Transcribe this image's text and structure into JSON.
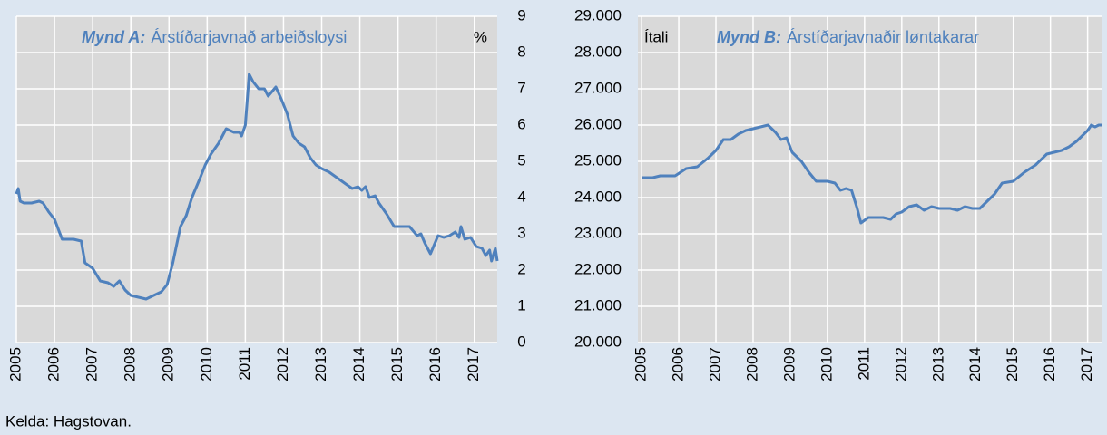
{
  "source": "Kelda: Hagstovan.",
  "chart_data": [
    {
      "type": "line",
      "title_label": "Mynd A:",
      "title": "Árstíðarjavnað arbeiðsloysi",
      "unit": "%",
      "color": "#4f81bd",
      "grid": true,
      "xlim": [
        2005,
        2017.6
      ],
      "xticks": [
        2005,
        2006,
        2007,
        2008,
        2009,
        2010,
        2011,
        2012,
        2013,
        2014,
        2015,
        2016,
        2017
      ],
      "ylim": [
        0,
        9
      ],
      "yticks": [
        0,
        1,
        2,
        3,
        4,
        5,
        6,
        7,
        8,
        9
      ],
      "x": [
        2005.0,
        2005.05,
        2005.1,
        2005.2,
        2005.4,
        2005.6,
        2005.7,
        2005.85,
        2006.0,
        2006.2,
        2006.5,
        2006.7,
        2006.8,
        2007.0,
        2007.2,
        2007.4,
        2007.55,
        2007.7,
        2007.85,
        2008.0,
        2008.2,
        2008.4,
        2008.6,
        2008.8,
        2008.95,
        2009.1,
        2009.3,
        2009.45,
        2009.6,
        2009.8,
        2009.95,
        2010.1,
        2010.3,
        2010.5,
        2010.7,
        2010.85,
        2010.9,
        2011.0,
        2011.1,
        2011.2,
        2011.35,
        2011.5,
        2011.6,
        2011.8,
        2011.95,
        2012.1,
        2012.25,
        2012.4,
        2012.55,
        2012.7,
        2012.85,
        2013.0,
        2013.2,
        2013.4,
        2013.6,
        2013.8,
        2013.95,
        2014.05,
        2014.15,
        2014.25,
        2014.4,
        2014.5,
        2014.7,
        2014.9,
        2015.1,
        2015.3,
        2015.5,
        2015.6,
        2015.7,
        2015.85,
        2015.95,
        2016.05,
        2016.2,
        2016.35,
        2016.5,
        2016.6,
        2016.65,
        2016.75,
        2016.9,
        2017.05,
        2017.2,
        2017.3,
        2017.4,
        2017.45,
        2017.55,
        2017.6
      ],
      "values": [
        4.1,
        4.25,
        3.9,
        3.85,
        3.85,
        3.9,
        3.85,
        3.6,
        3.4,
        2.85,
        2.85,
        2.8,
        2.2,
        2.05,
        1.7,
        1.65,
        1.55,
        1.7,
        1.45,
        1.3,
        1.25,
        1.2,
        1.3,
        1.4,
        1.6,
        2.2,
        3.2,
        3.5,
        4.0,
        4.5,
        4.9,
        5.2,
        5.5,
        5.9,
        5.8,
        5.8,
        5.7,
        6.0,
        7.4,
        7.2,
        7.0,
        7.0,
        6.8,
        7.05,
        6.7,
        6.3,
        5.7,
        5.5,
        5.4,
        5.1,
        4.9,
        4.8,
        4.7,
        4.55,
        4.4,
        4.25,
        4.3,
        4.2,
        4.3,
        4.0,
        4.05,
        3.85,
        3.55,
        3.2,
        3.2,
        3.2,
        2.95,
        3.0,
        2.75,
        2.45,
        2.7,
        2.95,
        2.9,
        2.95,
        3.05,
        2.9,
        3.2,
        2.85,
        2.9,
        2.65,
        2.6,
        2.4,
        2.55,
        2.25,
        2.6,
        2.25
      ]
    },
    {
      "type": "line",
      "title_label": "Mynd B:",
      "title": "Árstíðarjavnaðir løntakarar",
      "unit": "Ítali",
      "color": "#4f81bd",
      "grid": true,
      "xlim": [
        2004.9,
        2017.4
      ],
      "xticks": [
        2005,
        2006,
        2007,
        2008,
        2009,
        2010,
        2011,
        2012,
        2013,
        2014,
        2015,
        2016,
        2017
      ],
      "ylim": [
        20000,
        29000
      ],
      "yticks": [
        {
          "value": 20000,
          "label": "20.000"
        },
        {
          "value": 21000,
          "label": "21.000"
        },
        {
          "value": 22000,
          "label": "22.000"
        },
        {
          "value": 23000,
          "label": "23.000"
        },
        {
          "value": 24000,
          "label": "24.000"
        },
        {
          "value": 25000,
          "label": "25.000"
        },
        {
          "value": 26000,
          "label": "26.000"
        },
        {
          "value": 27000,
          "label": "27.000"
        },
        {
          "value": 28000,
          "label": "28.000"
        },
        {
          "value": 29000,
          "label": "29.000"
        }
      ],
      "x": [
        2005.0,
        2005.3,
        2005.5,
        2005.9,
        2006.2,
        2006.5,
        2006.8,
        2007.0,
        2007.2,
        2007.4,
        2007.6,
        2007.8,
        2008.0,
        2008.2,
        2008.4,
        2008.6,
        2008.75,
        2008.9,
        2009.05,
        2009.3,
        2009.5,
        2009.7,
        2010.0,
        2010.2,
        2010.35,
        2010.5,
        2010.65,
        2010.8,
        2010.9,
        2011.1,
        2011.3,
        2011.5,
        2011.7,
        2011.85,
        2012.0,
        2012.2,
        2012.4,
        2012.6,
        2012.8,
        2013.0,
        2013.3,
        2013.5,
        2013.7,
        2013.9,
        2014.1,
        2014.3,
        2014.5,
        2014.7,
        2015.0,
        2015.3,
        2015.6,
        2015.9,
        2016.1,
        2016.3,
        2016.5,
        2016.7,
        2016.9,
        2017.0,
        2017.1,
        2017.2,
        2017.3,
        2017.4
      ],
      "values": [
        24550,
        24550,
        24600,
        24600,
        24800,
        24850,
        25100,
        25300,
        25600,
        25600,
        25750,
        25850,
        25900,
        25950,
        26000,
        25800,
        25600,
        25650,
        25250,
        25000,
        24700,
        24450,
        24450,
        24400,
        24200,
        24250,
        24200,
        23700,
        23300,
        23450,
        23450,
        23450,
        23400,
        23550,
        23600,
        23750,
        23800,
        23650,
        23750,
        23700,
        23700,
        23650,
        23750,
        23700,
        23700,
        23900,
        24100,
        24400,
        24450,
        24700,
        24900,
        25200,
        25250,
        25300,
        25400,
        25550,
        25750,
        25850,
        26000,
        25950,
        26000,
        26000
      ]
    }
  ]
}
